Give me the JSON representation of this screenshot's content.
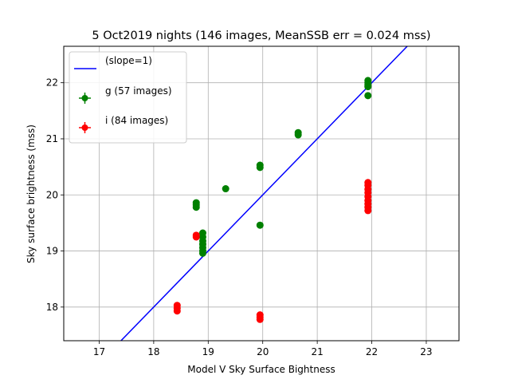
{
  "chart_data": {
    "type": "scatter",
    "title": "5 Oct2019 nights (146 images, MeanSSB err = 0.024 mss)",
    "xlabel": "Model V Sky Surface Bightness",
    "ylabel": "Sky surface brightness (mss)",
    "xlim": [
      16.35,
      23.6
    ],
    "ylim": [
      17.4,
      22.65
    ],
    "xticks": [
      17,
      18,
      19,
      20,
      21,
      22,
      23
    ],
    "yticks": [
      18,
      19,
      20,
      21,
      22
    ],
    "grid": true,
    "legend_position": "top-left",
    "reference_line": {
      "label": "(slope=1)",
      "slope": 1,
      "intercept": 0,
      "color": "#0000ff"
    },
    "series": [
      {
        "name": "g (57 images)",
        "color": "#008000",
        "points": [
          [
            18.78,
            19.86
          ],
          [
            18.78,
            19.82
          ],
          [
            18.78,
            19.78
          ],
          [
            18.9,
            19.32
          ],
          [
            18.9,
            19.25
          ],
          [
            18.9,
            19.18
          ],
          [
            18.9,
            19.12
          ],
          [
            18.9,
            19.06
          ],
          [
            18.9,
            19.0
          ],
          [
            18.9,
            18.96
          ],
          [
            19.32,
            20.11
          ],
          [
            19.95,
            20.53
          ],
          [
            19.95,
            20.49
          ],
          [
            19.95,
            19.46
          ],
          [
            20.65,
            21.11
          ],
          [
            20.65,
            21.07
          ],
          [
            21.93,
            22.04
          ],
          [
            21.93,
            22.0
          ],
          [
            21.93,
            21.96
          ],
          [
            21.93,
            21.93
          ],
          [
            21.93,
            21.77
          ]
        ]
      },
      {
        "name": "i (84 images)",
        "color": "#ff0000",
        "points": [
          [
            18.43,
            18.03
          ],
          [
            18.43,
            17.98
          ],
          [
            18.43,
            17.93
          ],
          [
            18.78,
            19.28
          ],
          [
            18.78,
            19.25
          ],
          [
            19.95,
            17.86
          ],
          [
            19.95,
            17.82
          ],
          [
            19.95,
            17.78
          ],
          [
            21.93,
            20.22
          ],
          [
            21.93,
            20.17
          ],
          [
            21.93,
            20.1
          ],
          [
            21.93,
            20.04
          ],
          [
            21.93,
            19.97
          ],
          [
            21.93,
            19.9
          ],
          [
            21.93,
            19.84
          ],
          [
            21.93,
            19.78
          ],
          [
            21.93,
            19.72
          ]
        ]
      }
    ]
  }
}
